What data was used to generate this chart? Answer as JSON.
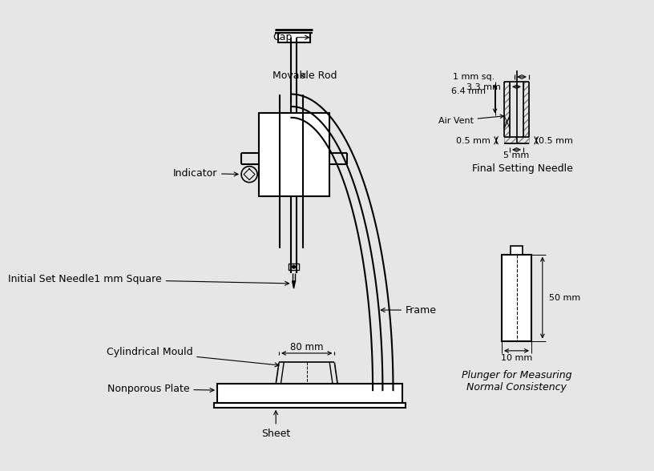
{
  "bg_color": "#e6e6e6",
  "line_color": "#000000",
  "labels": {
    "cap": "Cap",
    "movable_rod": "Movable Rod",
    "indicator": "Indicator",
    "initial_set_needle": "Initial Set Needle1 mm Square",
    "cylindrical_mould": "Cylindrical Mould",
    "nonporous_plate": "Nonporous Plate",
    "sheet": "Sheet",
    "frame": "Frame",
    "final_setting_needle": "Final Setting Needle",
    "plunger": "Plunger for Measuring\nNormal Consistency",
    "dim_80mm": "80 mm",
    "dim_50mm": "50 mm",
    "dim_10mm": "10 mm",
    "dim_1mm": "1 mm sq.",
    "dim_3_3mm": "3.3 mm",
    "dim_6_4mm": "6.4 mm",
    "dim_air_vent": "Air Vent",
    "dim_0_5mm_left": "0.5 mm",
    "dim_0_5mm_right": "0.5 mm",
    "dim_5mm": "5 mm"
  }
}
